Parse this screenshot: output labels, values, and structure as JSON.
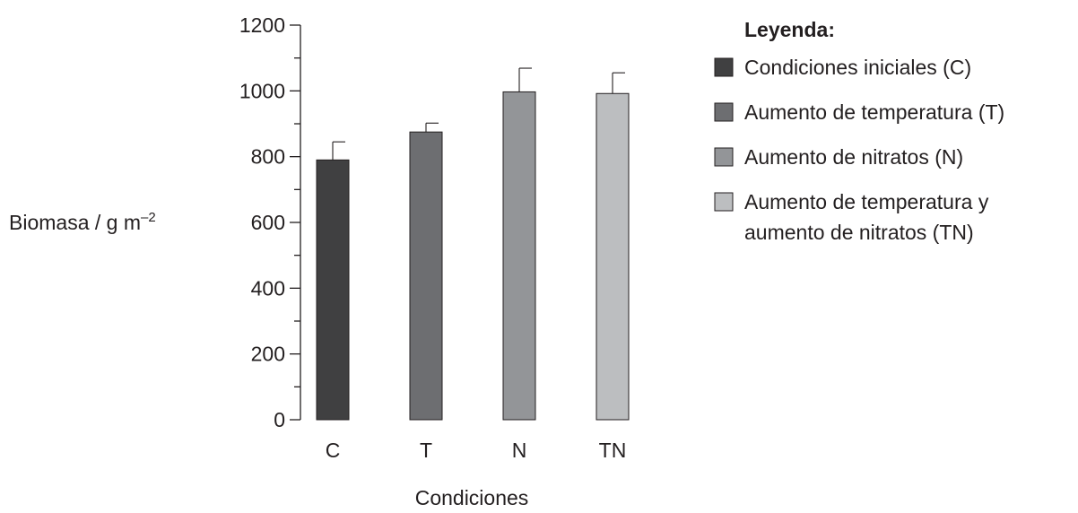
{
  "chart_data": {
    "type": "bar",
    "categories": [
      "C",
      "T",
      "N",
      "TN"
    ],
    "values": [
      790,
      875,
      997,
      992
    ],
    "errors": [
      55,
      27,
      72,
      63
    ],
    "colors": [
      "#404041",
      "#6d6e71",
      "#939598",
      "#bcbec0"
    ],
    "xlabel": "Condiciones",
    "ylabel": "Biomasa / g m",
    "ylabel_superscript": "–2",
    "ylim": [
      0,
      1200
    ],
    "y_ticks": [
      0,
      200,
      400,
      600,
      800,
      1000,
      1200
    ],
    "y_minor_step": 100,
    "grid": false,
    "legend": {
      "title": "Leyenda:",
      "placement": "right",
      "entries": [
        {
          "lines": [
            "Condiciones iniciales (C)"
          ],
          "color": "#404041"
        },
        {
          "lines": [
            "Aumento de temperatura (T)"
          ],
          "color": "#6d6e71"
        },
        {
          "lines": [
            "Aumento de nitratos (N)"
          ],
          "color": "#939598"
        },
        {
          "lines": [
            "Aumento de temperatura y",
            "aumento de nitratos (TN)"
          ],
          "color": "#bcbec0"
        }
      ]
    }
  }
}
